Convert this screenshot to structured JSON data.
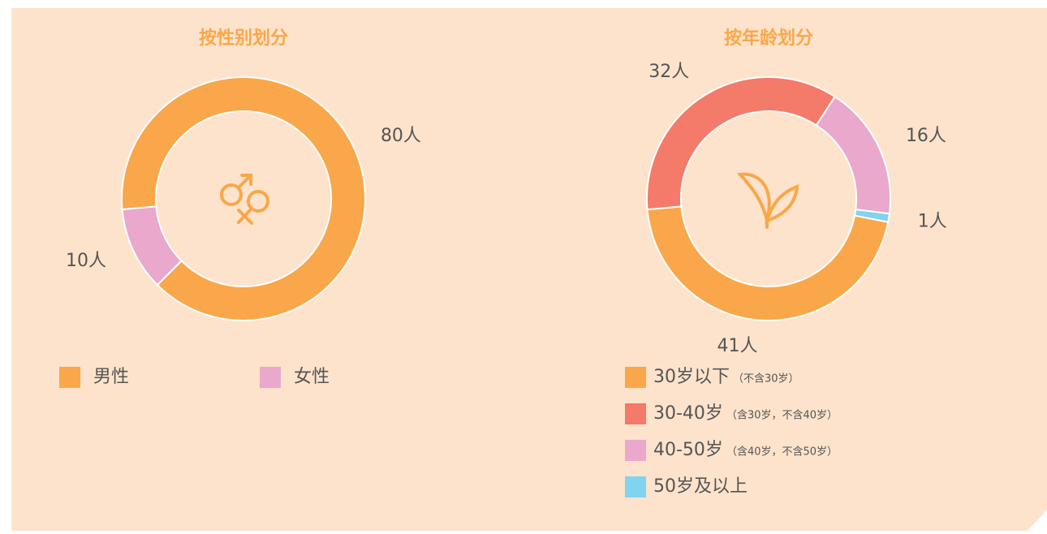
{
  "chart_data": [
    {
      "type": "donut",
      "title": "按性别划分",
      "categories": [
        "男性",
        "女性"
      ],
      "values": [
        80,
        10
      ],
      "value_labels": [
        "80人",
        "10人"
      ],
      "colors": [
        "#f9a74a",
        "#e9a8cc"
      ],
      "legend": "bottom"
    },
    {
      "type": "donut",
      "title": "按年龄划分",
      "categories": [
        "30岁以下",
        "30-40岁",
        "40-50岁",
        "50岁及以上"
      ],
      "category_notes": [
        "（不含30岁）",
        "（含30岁，不含40岁）",
        "（含40岁，不含50岁）",
        null
      ],
      "values": [
        41,
        32,
        16,
        1
      ],
      "value_labels": [
        "41人",
        "32人",
        "16人",
        "1人"
      ],
      "colors": [
        "#f9a74a",
        "#f47a6a",
        "#e9a8cc",
        "#7fd4ef"
      ],
      "legend": "bottom"
    }
  ]
}
